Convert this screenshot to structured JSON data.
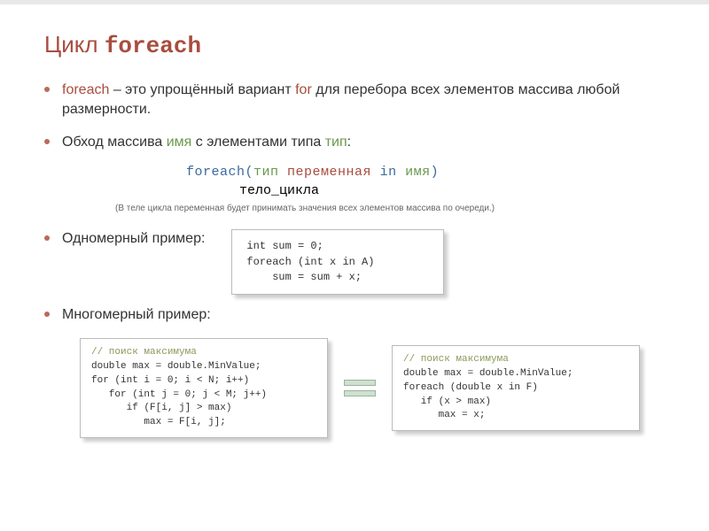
{
  "title": {
    "prefix": "Цикл ",
    "keyword": "foreach"
  },
  "bullets": {
    "b1_kw": "foreach",
    "b1_a": " – это упрощённый вариант ",
    "b1_for": "for",
    "b1_b": " для перебора всех элементов массива любой размерности.",
    "b2_a": "Обход массива ",
    "b2_name": "имя",
    "b2_b": " с элементами типа ",
    "b2_type": "тип",
    "b2_c": ":",
    "b3": "Одномерный пример:",
    "b4": "Многомерный пример:"
  },
  "syntax": {
    "kw": "foreach(",
    "type": "тип",
    "var": "переменная",
    "in": " in ",
    "name": "имя",
    "close": ")",
    "body": "тело_цикла"
  },
  "note": "(В теле цикла переменная будет принимать значения всех элементов массива по очереди.)",
  "code1": {
    "l1": "int sum = 0;",
    "l2": "foreach (int x in A)",
    "l3": "    sum = sum + x;"
  },
  "code2": {
    "c1": "// поиск максимума",
    "l2": "double max = double.MinValue;",
    "l3": "for (int i = 0; i < N; i++)",
    "l4": "   for (int j = 0; j < M; j++)",
    "l5": "      if (F[i, j] > max)",
    "l6": "         max = F[i, j];"
  },
  "code3": {
    "c1": "// поиск максимума",
    "l2": "double max = double.MinValue;",
    "l3": "foreach (double x in F)",
    "l4": "   if (x > max)",
    "l5": "      max = x;"
  },
  "colors": {
    "accent_red": "#a84d3f",
    "accent_green": "#6a994e",
    "accent_blue": "#3a6aa0",
    "box_border": "#bbbbbb",
    "equals_fill": "#cfe0d0",
    "background": "#ffffff"
  }
}
